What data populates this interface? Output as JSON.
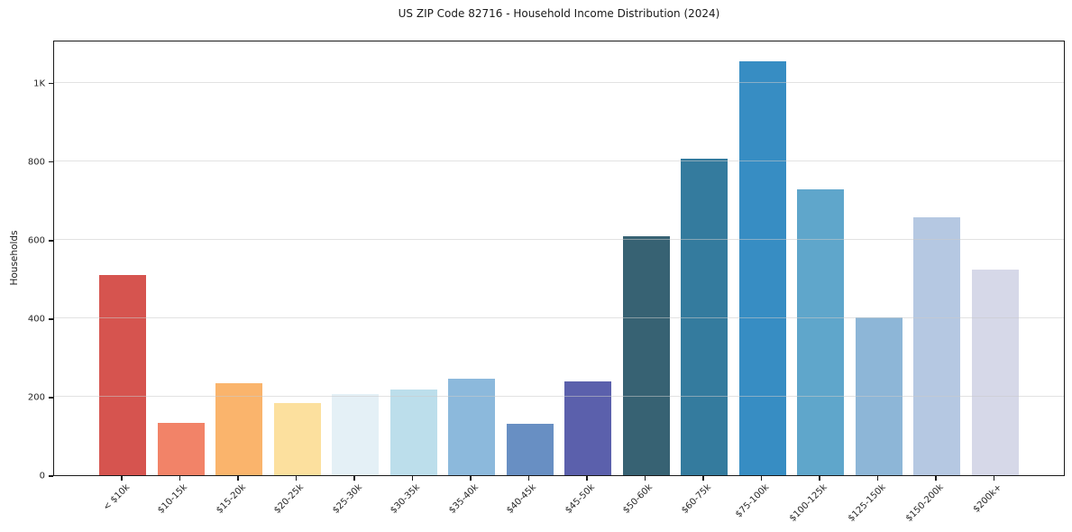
{
  "chart_data": {
    "type": "bar",
    "title": "US ZIP Code 82716 - Household Income Distribution (2024)",
    "xlabel": "",
    "ylabel": "Households",
    "categories": [
      "< $10k",
      "$10-15k",
      "$15-20k",
      "$20-25k",
      "$25-30k",
      "$30-35k",
      "$35-40k",
      "$40-45k",
      "$45-50k",
      "$50-60k",
      "$60-75k",
      "$75-100k",
      "$100-125k",
      "$125-150k",
      "$150-200k",
      "$200k+"
    ],
    "values": [
      510,
      134,
      235,
      183,
      207,
      219,
      245,
      130,
      238,
      610,
      807,
      1056,
      729,
      403,
      658,
      524
    ],
    "bar_colors": [
      "#d6544f",
      "#f28368",
      "#fab46c",
      "#fce09e",
      "#e4f0f6",
      "#bcdeeb",
      "#8cb9dc",
      "#688fc3",
      "#5b60ac",
      "#376273",
      "#347b9e",
      "#378dc3",
      "#5fa6cb",
      "#8db6d7",
      "#b5c8e2",
      "#d6d8e8"
    ],
    "ylim": [
      0,
      1110
    ],
    "ytick_values": [
      0,
      200,
      400,
      600,
      800,
      1000
    ],
    "ytick_labels": [
      "0",
      "200",
      "400",
      "600",
      "800",
      "1K"
    ],
    "grid": "horizontal",
    "legend": "none"
  }
}
